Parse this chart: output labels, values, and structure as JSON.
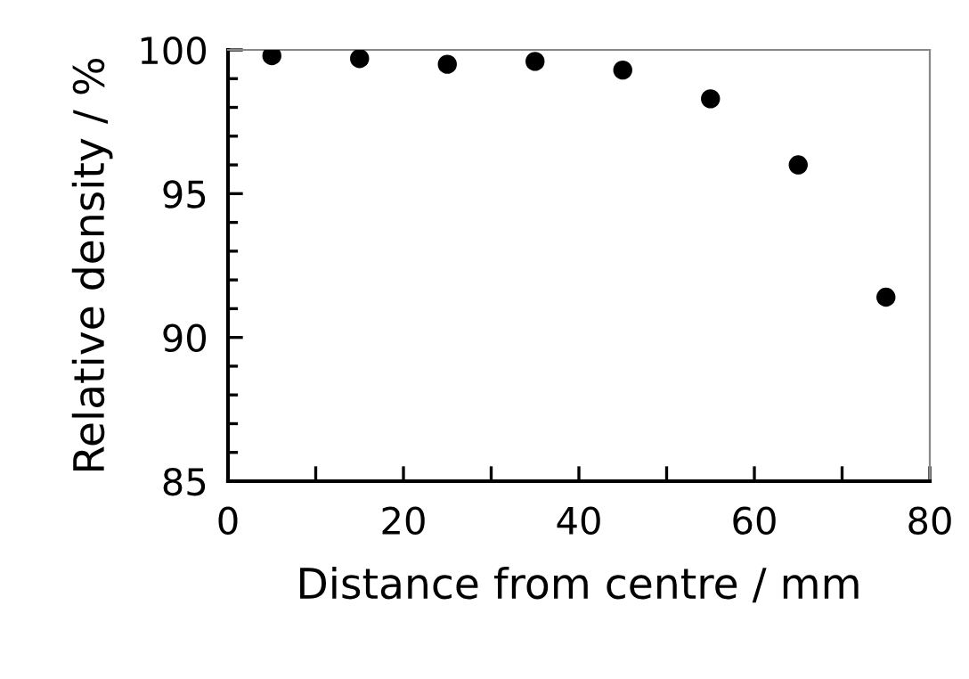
{
  "chart_data": {
    "type": "scatter",
    "xlabel": "Distance from centre / mm",
    "ylabel": "Relative density / %",
    "x": [
      5,
      15,
      25,
      35,
      45,
      55,
      65,
      75
    ],
    "series": [
      {
        "color": "#000000",
        "values": [
          99.8,
          99.7,
          99.5,
          99.6,
          99.3,
          98.3,
          96.0,
          91.4
        ]
      }
    ],
    "xlim": [
      0,
      80
    ],
    "xticks": [
      0,
      {
        "value": 10,
        "label": null
      },
      20,
      {
        "value": 30,
        "label": null
      },
      40,
      {
        "value": 50,
        "label": null
      },
      60,
      {
        "value": 70,
        "label": null
      },
      80
    ],
    "ylim": [
      85,
      100
    ],
    "yticks": [
      85,
      90,
      95,
      100
    ],
    "grid": false,
    "legend": false,
    "marker": "circle"
  }
}
